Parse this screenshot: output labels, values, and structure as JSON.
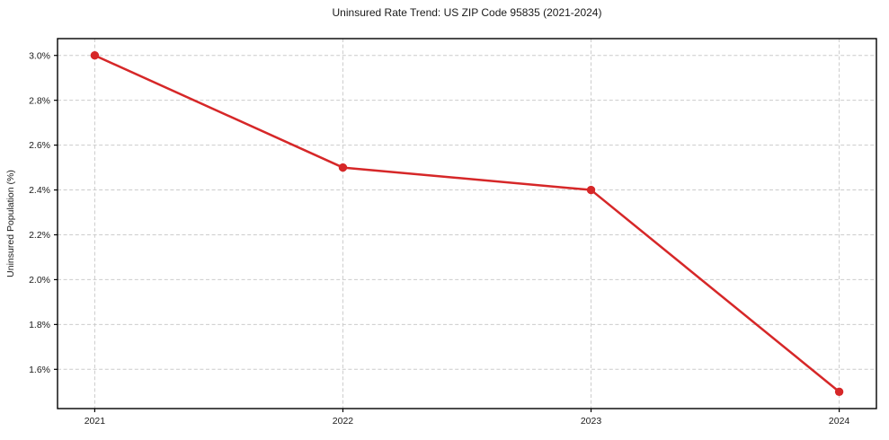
{
  "chart_data": {
    "type": "line",
    "title": "Uninsured Rate Trend: US ZIP Code 95835 (2021-2024)",
    "xlabel": "",
    "ylabel": "Uninsured Population (%)",
    "x": [
      2021,
      2022,
      2023,
      2024
    ],
    "x_tick_labels": [
      "2021",
      "2022",
      "2023",
      "2024"
    ],
    "values": [
      3.0,
      2.5,
      2.4,
      1.5
    ],
    "y_ticks": [
      1.6,
      1.8,
      2.0,
      2.2,
      2.4,
      2.6,
      2.8,
      3.0
    ],
    "y_tick_labels": [
      "1.6%",
      "1.8%",
      "2.0%",
      "2.2%",
      "2.4%",
      "2.6%",
      "2.8%",
      "3.0%"
    ],
    "xlim": [
      2020.85,
      2024.15
    ],
    "ylim": [
      1.425,
      3.075
    ],
    "grid": true,
    "legend_position": "none",
    "line_color": "#d62728",
    "marker_color": "#d62728",
    "grid_color": "#cccccc",
    "spine_color": "#000000"
  }
}
